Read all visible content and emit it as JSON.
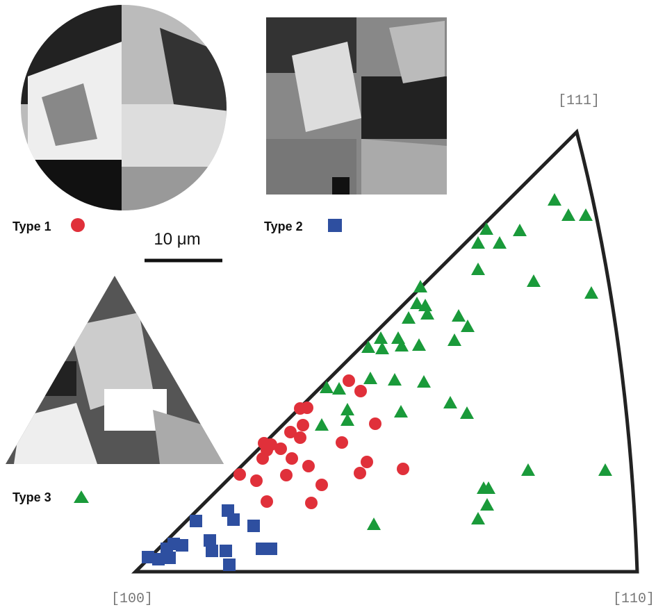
{
  "figure": {
    "corners": {
      "top": "[111]",
      "left": "[100]",
      "right": "[110]"
    },
    "legend": [
      {
        "label": "Type 1"
      },
      {
        "label": "Type 2"
      },
      {
        "label": "Type 3"
      }
    ],
    "scale_bar": "10 μm"
  }
}
